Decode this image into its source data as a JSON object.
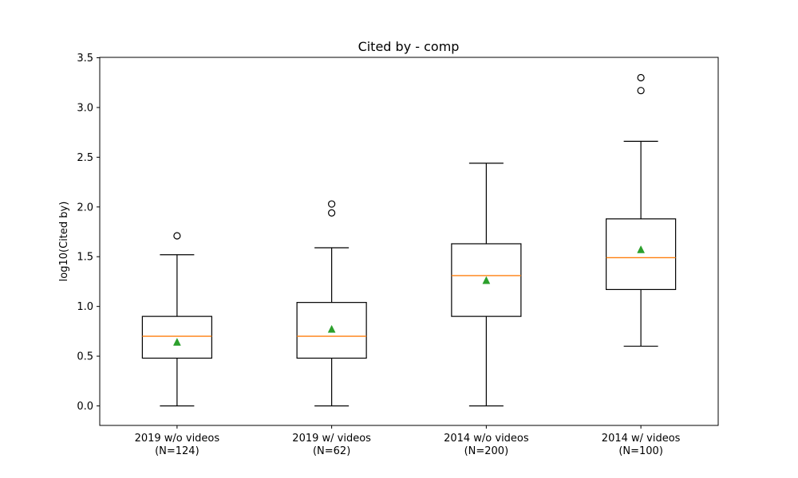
{
  "chart_data": {
    "type": "boxplot",
    "title": "Cited by - comp",
    "xlabel": "",
    "ylabel": "log10(Cited by)",
    "ylim": [
      -0.2,
      3.5
    ],
    "yticks": [
      "0.0",
      "0.5",
      "1.0",
      "1.5",
      "2.0",
      "2.5",
      "3.0",
      "3.5"
    ],
    "ytick_values": [
      0.0,
      0.5,
      1.0,
      1.5,
      2.0,
      2.5,
      3.0,
      3.5
    ],
    "grid": false,
    "boxes": [
      {
        "label_line1": "2019 w/o videos",
        "label_line2": "(N=124)",
        "whisker_low": 0.0,
        "q1": 0.48,
        "median": 0.7,
        "q3": 0.9,
        "whisker_high": 1.52,
        "mean": 0.64,
        "outliers": [
          1.71
        ]
      },
      {
        "label_line1": "2019 w/ videos",
        "label_line2": "(N=62)",
        "whisker_low": 0.0,
        "q1": 0.48,
        "median": 0.7,
        "q3": 1.04,
        "whisker_high": 1.59,
        "mean": 0.77,
        "outliers": [
          1.94,
          2.03
        ]
      },
      {
        "label_line1": "2014 w/o videos",
        "label_line2": "(N=200)",
        "whisker_low": 0.0,
        "q1": 0.9,
        "median": 1.31,
        "q3": 1.63,
        "whisker_high": 2.44,
        "mean": 1.26,
        "outliers": []
      },
      {
        "label_line1": "2014 w/ videos",
        "label_line2": "(N=100)",
        "whisker_low": 0.6,
        "q1": 1.17,
        "median": 1.49,
        "q3": 1.88,
        "whisker_high": 2.66,
        "mean": 1.57,
        "outliers": [
          3.17,
          3.3
        ]
      }
    ],
    "colors": {
      "box": "#000000",
      "median": "#ff7f0e",
      "mean": "#2ca02c",
      "outlier": "#000000"
    }
  }
}
